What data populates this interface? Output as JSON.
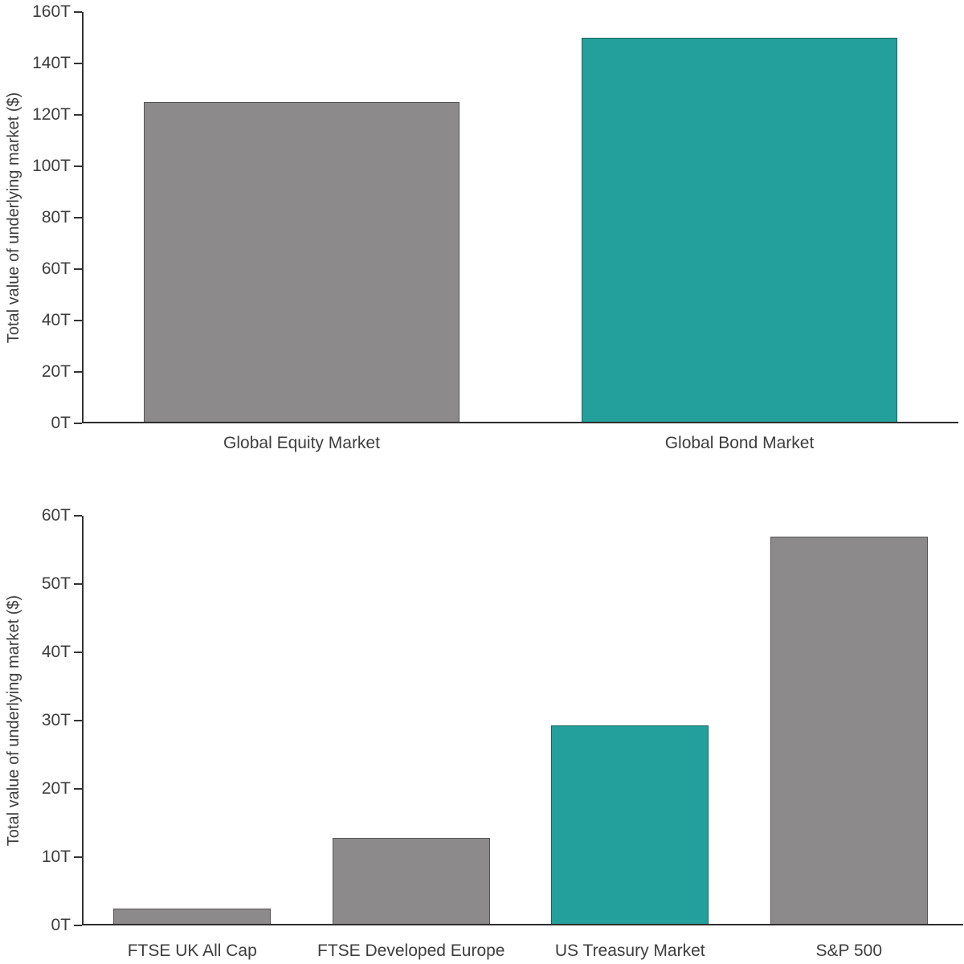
{
  "figure": {
    "background": "#ffffff",
    "description": "Two stacked bar charts comparing total value of underlying markets"
  },
  "palette": {
    "bar_gray": "#8C8A8B",
    "accent_teal": "#23A09C",
    "axis_color": "#333333",
    "text_color": "#3D3D3D"
  },
  "chart_data": [
    {
      "type": "bar",
      "title": "",
      "xlabel": "",
      "ylabel": "Total value of underlying market ($)",
      "unit": "T",
      "categories": [
        "Global Equity Market",
        "Global Bond Market"
      ],
      "values": [
        125,
        150
      ],
      "bar_colors": [
        "#8C8A8B",
        "#23A09C"
      ],
      "ylim": [
        0,
        160
      ],
      "ytick_step": 20,
      "ytick_labels": [
        "160T",
        "140T",
        "120T",
        "100T",
        "80T",
        "60T",
        "40T",
        "20T",
        "0T"
      ],
      "grid": false,
      "legend": false
    },
    {
      "type": "bar",
      "title": "",
      "xlabel": "",
      "ylabel": "Total value of underlying market ($)",
      "unit": "T",
      "categories": [
        "FTSE UK All Cap",
        "FTSE Developed Europe",
        "US Treasury Market",
        "S&P 500"
      ],
      "values": [
        2.5,
        12.8,
        29.3,
        57
      ],
      "bar_colors": [
        "#8C8A8B",
        "#8C8A8B",
        "#23A09C",
        "#8C8A8B"
      ],
      "ylim": [
        0,
        60
      ],
      "ytick_step": 10,
      "ytick_labels": [
        "60T",
        "50T",
        "40T",
        "30T",
        "20T",
        "10T",
        "0T"
      ],
      "grid": false,
      "legend": false
    }
  ]
}
